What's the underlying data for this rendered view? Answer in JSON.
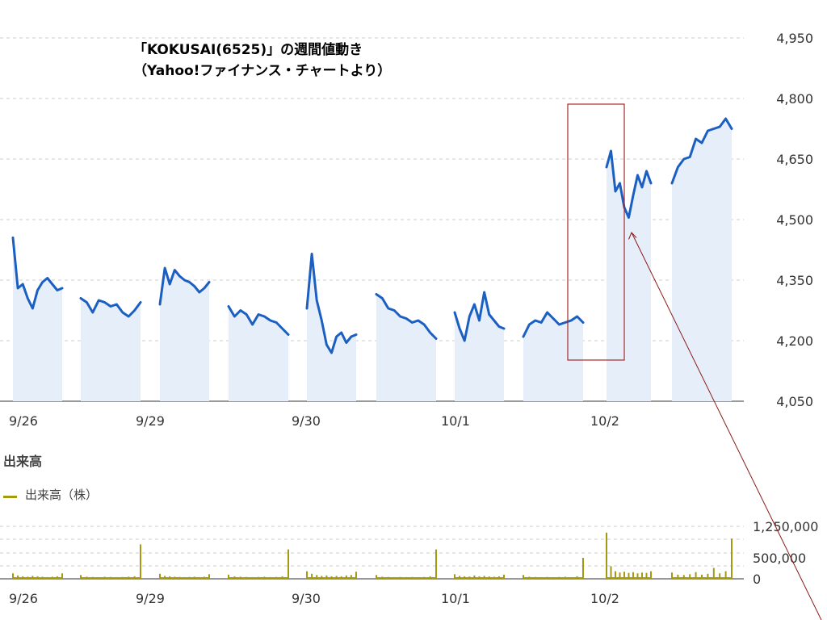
{
  "title": {
    "line1": "「KOKUSAI(6525)」の週間値動き",
    "line2": "（Yahoo!ファイナンス・チャートより）"
  },
  "volume_panel": {
    "heading": "出来高",
    "legend_label": "出来高（株）"
  },
  "colors": {
    "price_line": "#1a5fc1",
    "price_fill": "#e6eff9",
    "volume_bar": "#a39a12",
    "grid": "#cccccc",
    "axis": "#333333",
    "highlight_box": "#a52a2a",
    "arrow": "#8b1a1a"
  },
  "chart_data": [
    {
      "type": "line",
      "title": "",
      "ylabel": "",
      "ylim": [
        4050,
        4950
      ],
      "yticks": [
        4050,
        4200,
        4350,
        4500,
        4650,
        4800,
        4950
      ],
      "ytick_labels": [
        "4,050",
        "4,200",
        "4,350",
        "4,500",
        "4,650",
        "4,800",
        "4,950"
      ],
      "grid": true,
      "x_labels": [
        "9/26",
        "9/29",
        "9/30",
        "10/1",
        "10/2"
      ],
      "sessions": [
        {
          "day": "9/26",
          "part": "am",
          "prices": [
            4455,
            4330,
            4340,
            4305,
            4280,
            4325,
            4345,
            4355,
            4340,
            4325,
            4330
          ]
        },
        {
          "day": "9/26",
          "part": "pm",
          "prices": [
            4305,
            4295,
            4270,
            4300,
            4295,
            4285,
            4290,
            4270,
            4260,
            4275,
            4295
          ]
        },
        {
          "day": "9/29",
          "part": "am",
          "prices": [
            4290,
            4380,
            4340,
            4375,
            4360,
            4350,
            4345,
            4335,
            4320,
            4330,
            4345
          ]
        },
        {
          "day": "9/29",
          "part": "pm",
          "prices": [
            4285,
            4260,
            4275,
            4265,
            4240,
            4265,
            4260,
            4250,
            4245,
            4230,
            4215
          ]
        },
        {
          "day": "9/30",
          "part": "am",
          "prices": [
            4280,
            4415,
            4300,
            4250,
            4190,
            4170,
            4210,
            4220,
            4195,
            4210,
            4215
          ]
        },
        {
          "day": "9/30",
          "part": "pm",
          "prices": [
            4315,
            4305,
            4280,
            4275,
            4260,
            4255,
            4245,
            4250,
            4240,
            4220,
            4205
          ]
        },
        {
          "day": "10/1",
          "part": "am",
          "prices": [
            4270,
            4230,
            4200,
            4260,
            4290,
            4250,
            4320,
            4265,
            4250,
            4235,
            4230
          ]
        },
        {
          "day": "10/1",
          "part": "pm",
          "prices": [
            4210,
            4240,
            4250,
            4245,
            4270,
            4255,
            4240,
            4245,
            4250,
            4260,
            4245
          ]
        },
        {
          "day": "10/2",
          "part": "am",
          "prices": [
            4630,
            4670,
            4570,
            4590,
            4530,
            4505,
            4560,
            4610,
            4580,
            4620,
            4590
          ]
        },
        {
          "day": "10/2",
          "part": "pm",
          "prices": [
            4590,
            4630,
            4650,
            4655,
            4700,
            4690,
            4720,
            4725,
            4730,
            4750,
            4725
          ]
        }
      ]
    },
    {
      "type": "bar",
      "title": "",
      "ylabel": "",
      "ylim": [
        0,
        1250000
      ],
      "yticks": [
        0,
        500000,
        1250000
      ],
      "ytick_labels": [
        "0",
        "500,000",
        "1,250,000"
      ],
      "x_labels": [
        "9/26",
        "9/29",
        "9/30",
        "10/1",
        "10/2"
      ],
      "series_name": "出来高（株）",
      "sessions": [
        {
          "day": "9/26",
          "part": "am",
          "volumes": [
            130000,
            80000,
            60000,
            50000,
            70000,
            60000,
            50000,
            40000,
            50000,
            60000,
            130000
          ]
        },
        {
          "day": "9/26",
          "part": "pm",
          "volumes": [
            90000,
            50000,
            45000,
            40000,
            50000,
            45000,
            40000,
            45000,
            50000,
            60000,
            820000
          ]
        },
        {
          "day": "9/29",
          "part": "am",
          "volumes": [
            120000,
            70000,
            60000,
            50000,
            45000,
            40000,
            45000,
            50000,
            40000,
            50000,
            110000
          ]
        },
        {
          "day": "9/29",
          "part": "pm",
          "volumes": [
            100000,
            60000,
            50000,
            45000,
            40000,
            45000,
            50000,
            40000,
            45000,
            60000,
            700000
          ]
        },
        {
          "day": "9/30",
          "part": "am",
          "volumes": [
            180000,
            120000,
            90000,
            70000,
            80000,
            60000,
            70000,
            60000,
            80000,
            90000,
            170000
          ]
        },
        {
          "day": "9/30",
          "part": "pm",
          "volumes": [
            90000,
            50000,
            45000,
            40000,
            45000,
            40000,
            45000,
            40000,
            45000,
            60000,
            700000
          ]
        },
        {
          "day": "10/1",
          "part": "am",
          "volumes": [
            110000,
            70000,
            60000,
            55000,
            80000,
            60000,
            70000,
            55000,
            50000,
            60000,
            100000
          ]
        },
        {
          "day": "10/1",
          "part": "pm",
          "volumes": [
            90000,
            50000,
            45000,
            40000,
            45000,
            40000,
            45000,
            50000,
            40000,
            60000,
            500000
          ]
        },
        {
          "day": "10/2",
          "part": "am",
          "volumes": [
            1100000,
            300000,
            180000,
            150000,
            170000,
            140000,
            160000,
            130000,
            150000,
            140000,
            180000
          ]
        },
        {
          "day": "10/2",
          "part": "pm",
          "volumes": [
            150000,
            100000,
            90000,
            110000,
            160000,
            100000,
            120000,
            260000,
            130000,
            180000,
            960000
          ]
        }
      ]
    }
  ]
}
